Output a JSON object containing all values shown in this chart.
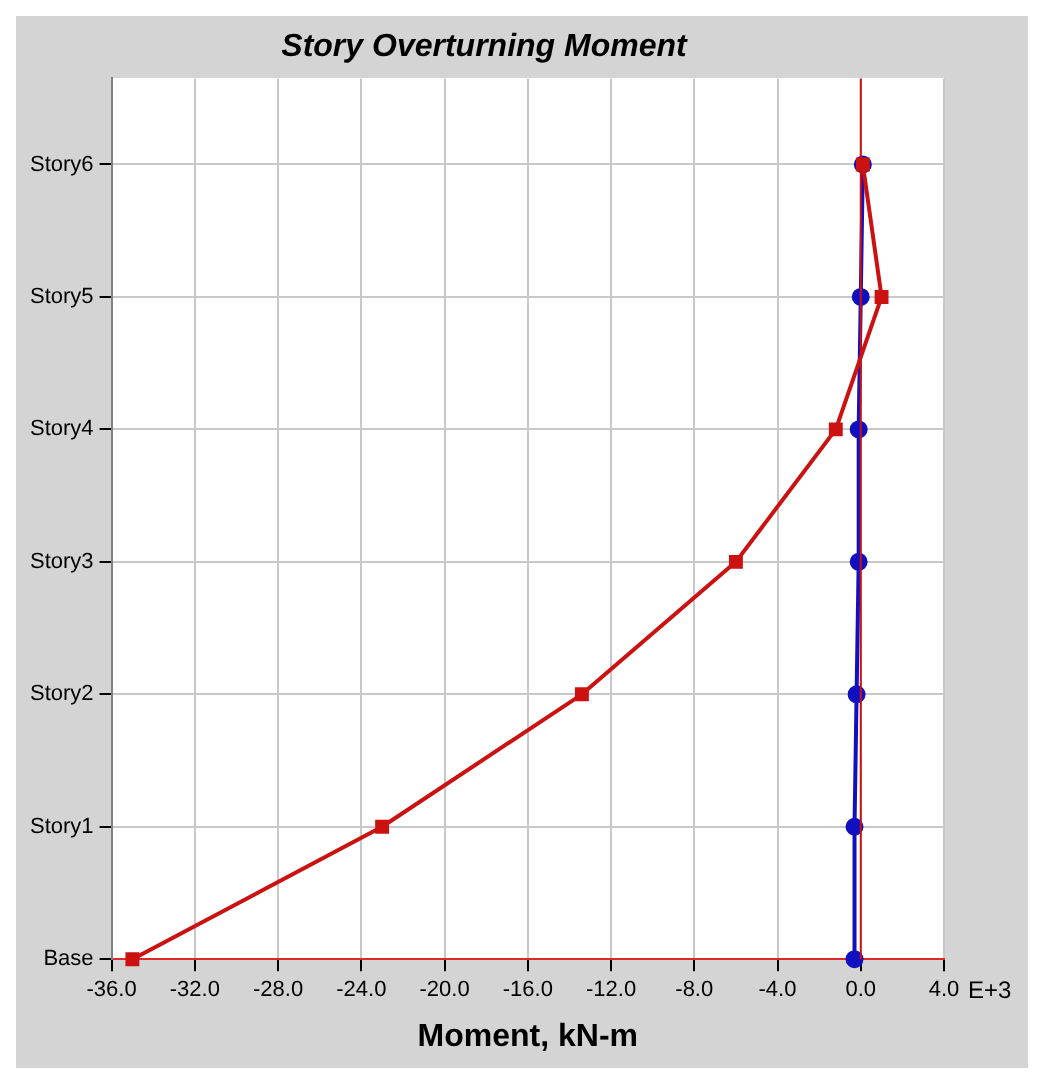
{
  "chart_data": {
    "type": "line",
    "title": "Story Overturning Moment",
    "xlabel": "Moment, kN-m",
    "annotations": [
      "E+3"
    ],
    "categories": [
      "Story6",
      "Story5",
      "Story4",
      "Story3",
      "Story2",
      "Story1",
      "Base"
    ],
    "series": [
      {
        "color": "#cc1111",
        "marker": "square",
        "values": [
          0.1,
          1.0,
          -1.2,
          -6.0,
          -13.4,
          -23.0,
          -35.0
        ]
      },
      {
        "color": "#1010c0",
        "marker": "circle",
        "values": [
          0.1,
          0.0,
          -0.1,
          -0.1,
          -0.2,
          -0.3,
          -0.3
        ]
      }
    ],
    "xlim": [
      -36,
      4
    ],
    "xticks": [
      {
        "value": -36,
        "label": "-36.0"
      },
      {
        "value": -32,
        "label": "-32.0"
      },
      {
        "value": -28,
        "label": "-28.0"
      },
      {
        "value": -24,
        "label": "-24.0"
      },
      {
        "value": -20,
        "label": "-20.0"
      },
      {
        "value": -16,
        "label": "-16.0"
      },
      {
        "value": -12,
        "label": "-12.0"
      },
      {
        "value": -8,
        "label": "-8.0"
      },
      {
        "value": -4,
        "label": "-4.0"
      },
      {
        "value": 0,
        "label": "0.0"
      },
      {
        "value": 4,
        "label": "4.0"
      }
    ],
    "ref_lines": [
      {
        "axis": "x",
        "value": 0,
        "color": "#cc1111"
      }
    ],
    "orientation": "horizontal",
    "grid": true,
    "legend": false,
    "line_style": "solid"
  }
}
